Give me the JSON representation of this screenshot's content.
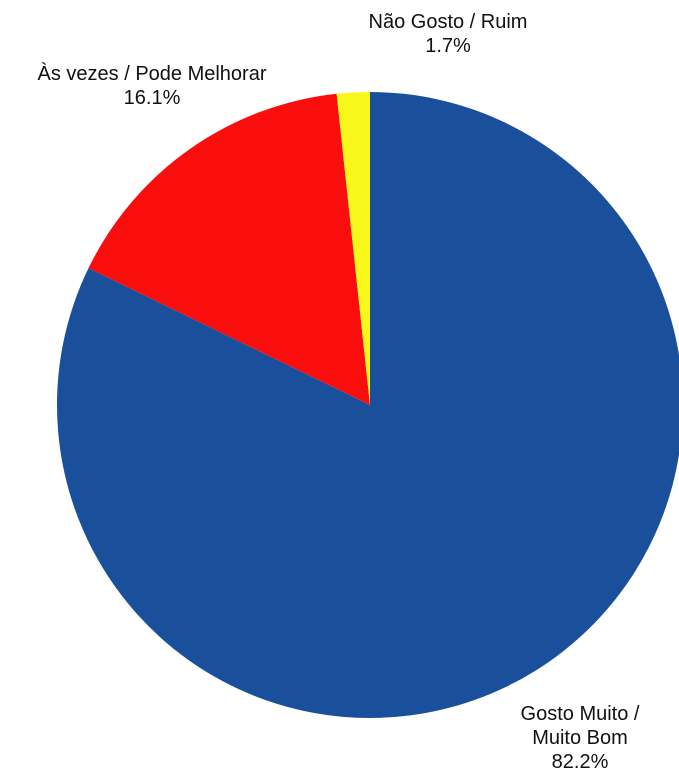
{
  "chart_data": {
    "type": "pie",
    "title": "",
    "start_angle_deg": 0,
    "direction": "clockwise",
    "legend": "none",
    "slices": [
      {
        "label_lines": [
          "Gosto Muito /",
          "Muito Bom"
        ],
        "value": 82.2,
        "value_label": "82.2%",
        "color": "#1a4f9c"
      },
      {
        "label_lines": [
          "Às vezes / Pode Melhorar"
        ],
        "value": 16.1,
        "value_label": "16.1%",
        "color": "#f90d0d"
      },
      {
        "label_lines": [
          "Não Gosto / Ruim"
        ],
        "value": 1.7,
        "value_label": "1.7%",
        "color": "#f7f71a"
      }
    ]
  }
}
